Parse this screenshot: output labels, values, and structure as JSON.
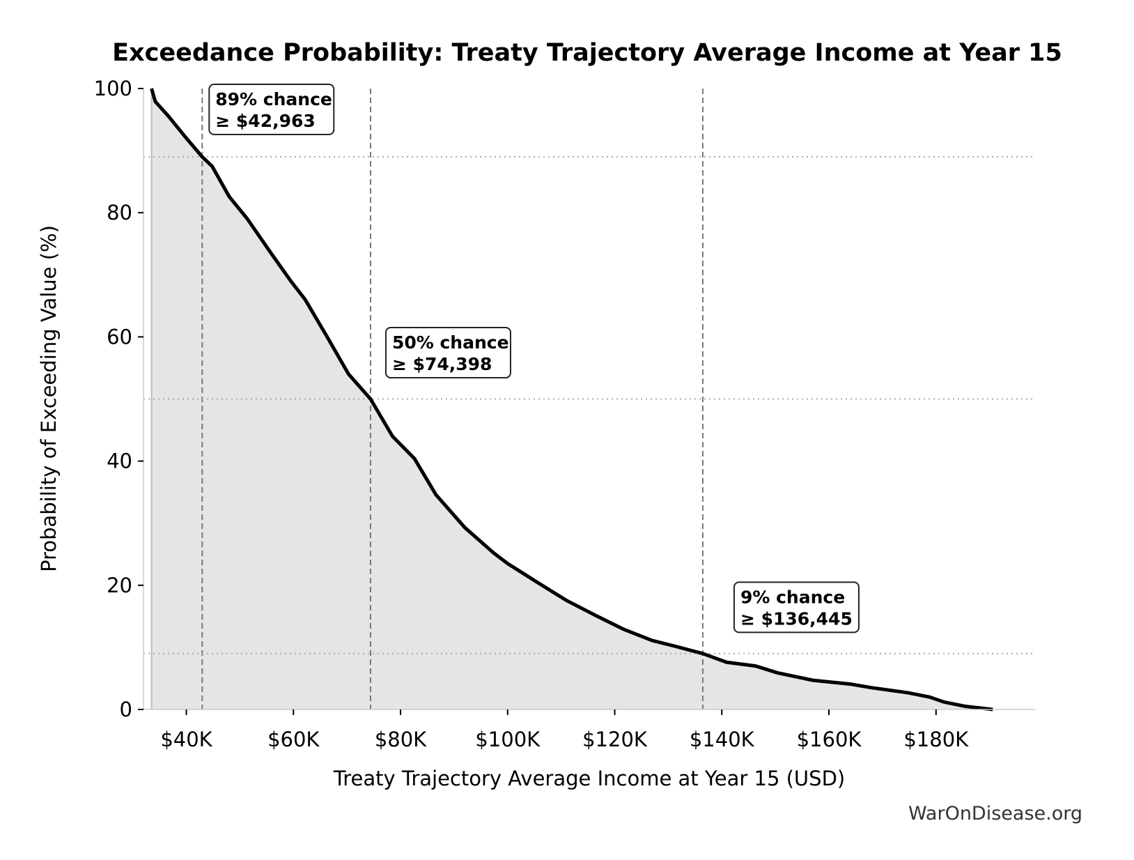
{
  "chart_data": {
    "type": "area",
    "title": "Exceedance Probability: Treaty Trajectory Average Income at Year 15",
    "xlabel": "Treaty Trajectory Average Income at Year 15 (USD)",
    "ylabel": "Probability of Exceeding Value (%)",
    "xlim": [
      32000,
      198500
    ],
    "ylim": [
      0,
      100
    ],
    "x_ticks": [
      40000,
      60000,
      80000,
      100000,
      120000,
      140000,
      160000,
      180000
    ],
    "x_tick_labels": [
      "$40K",
      "$60K",
      "$80K",
      "$100K",
      "$120K",
      "$140K",
      "$160K",
      "$180K"
    ],
    "y_ticks": [
      0,
      20,
      40,
      60,
      80,
      100
    ],
    "y_tick_labels": [
      "0",
      "20",
      "40",
      "60",
      "80",
      "100"
    ],
    "grid": false,
    "series": [
      {
        "x": [
          33500,
          34200,
          36700,
          40000,
          42963,
          44800,
          48000,
          51400,
          55400,
          59500,
          62200,
          66300,
          70300,
          74398,
          78500,
          82600,
          86600,
          92000,
          97400,
          100000,
          105500,
          110900,
          116300,
          121700,
          127000,
          131200,
          136445,
          140900,
          146300,
          150400,
          157000,
          163900,
          168000,
          174700,
          178800,
          181500,
          185500,
          190600
        ],
        "y": [
          100,
          97.9,
          95.5,
          92,
          89,
          87.5,
          82.6,
          79,
          74,
          69,
          66,
          60,
          54,
          50,
          44,
          40.4,
          34.6,
          29.3,
          25.2,
          23.5,
          20.5,
          17.6,
          15.2,
          12.9,
          11.1,
          10.2,
          9,
          7.6,
          7.0,
          5.9,
          4.7,
          4.1,
          3.5,
          2.7,
          2.0,
          1.2,
          0.5,
          0
        ]
      }
    ],
    "colors": {
      "line": "#000000",
      "fill": "#e5e5e5",
      "marker_line": "#777777",
      "ref_line": "#aaaaaa"
    },
    "annotations": [
      {
        "prob": 89,
        "value": 42963,
        "line1": "89% chance",
        "line2": "≥ $42,963"
      },
      {
        "prob": 50,
        "value": 74398,
        "line1": "50% chance",
        "line2": "≥ $74,398"
      },
      {
        "prob": 9,
        "value": 136445,
        "line1": "9% chance",
        "line2": "≥ $136,445"
      }
    ]
  },
  "watermark": "WarOnDisease.org"
}
